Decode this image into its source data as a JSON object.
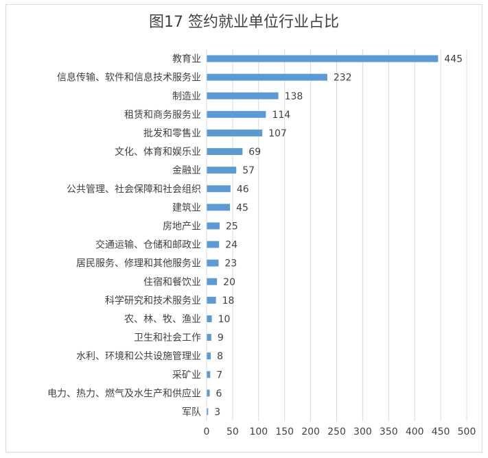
{
  "chart_data": {
    "type": "bar",
    "orientation": "horizontal",
    "title": "图17  签约就业单位行业占比",
    "categories": [
      "教育业",
      "信息传输、软件和信息技术服务业",
      "制造业",
      "租赁和商务服务业",
      "批发和零售业",
      "文化、体育和娱乐业",
      "金融业",
      "公共管理、社会保障和社会组织",
      "建筑业",
      "房地产业",
      "交通运输、仓储和邮政业",
      "居民服务、修理和其他服务业",
      "住宿和餐饮业",
      "科学研究和技术服务业",
      "农、林、牧、渔业",
      "卫生和社会工作",
      "水利、环境和公共设施管理业",
      "采矿业",
      "电力、热力、燃气及水生产和供应业",
      "军队"
    ],
    "values": [
      445,
      232,
      138,
      114,
      107,
      69,
      57,
      46,
      45,
      25,
      24,
      23,
      20,
      18,
      10,
      9,
      8,
      7,
      6,
      3
    ],
    "xlim": [
      0,
      500
    ],
    "xticks": [
      0,
      50,
      100,
      150,
      200,
      250,
      300,
      350,
      400,
      450,
      500
    ],
    "grid": "vertical",
    "legend": "none",
    "bar_color": "#5b9bd5",
    "grid_color": "#d9d9d9",
    "text_color": "#404040"
  }
}
